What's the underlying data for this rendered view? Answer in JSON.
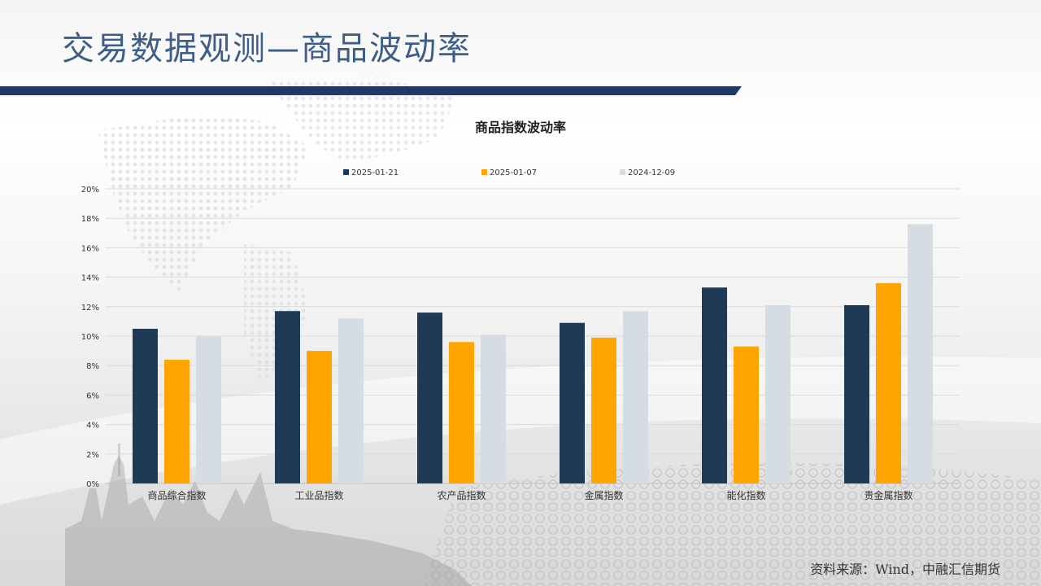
{
  "slide": {
    "title": "交易数据观测—商品波动率",
    "source": "资料来源：Wind，中融汇信期货"
  },
  "colors": {
    "title": "#3e5e86",
    "title_bar": "#1f3864",
    "series": [
      "#1f3a57",
      "#ffa500",
      "#d6dce4"
    ],
    "grid": "#d9d9d9",
    "axis_text": "#333333"
  },
  "chart_data": {
    "type": "bar",
    "title": "商品指数波动率",
    "categories": [
      "商品综合指数",
      "工业品指数",
      "农产品指数",
      "金属指数",
      "能化指数",
      "贵金属指数"
    ],
    "series": [
      {
        "name": "2025-01-21",
        "values": [
          10.5,
          11.7,
          11.6,
          10.9,
          13.3,
          12.1
        ]
      },
      {
        "name": "2025-01-07",
        "values": [
          8.4,
          9.0,
          9.6,
          9.9,
          9.3,
          13.6
        ]
      },
      {
        "name": "2024-12-09",
        "values": [
          10.0,
          11.2,
          10.1,
          11.7,
          12.1,
          17.6
        ]
      }
    ],
    "xlabel": "",
    "ylabel": "",
    "ylim": [
      0,
      20
    ],
    "yticks": [
      "0%",
      "2%",
      "4%",
      "6%",
      "8%",
      "10%",
      "12%",
      "14%",
      "16%",
      "18%",
      "20%"
    ],
    "grid": true,
    "legend": "top"
  }
}
